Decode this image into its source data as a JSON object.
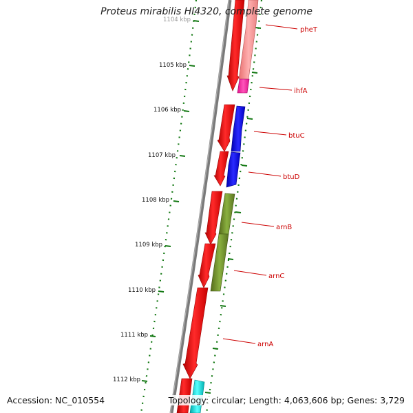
{
  "title": "Proteus mirabilis HI4320, complete genome",
  "footer": {
    "accession": "Accession: NC_010554",
    "summary": "Topology: circular; Length: 4,063,606 bp; Genes: 3,729"
  },
  "scale": {
    "unit": "kbp",
    "visible_from_kbp": 1104,
    "visible_to_kbp": 1112
  },
  "tick_labels": [
    "1104 kbp",
    "1105 kbp",
    "1106 kbp",
    "1107 kbp",
    "1108 kbp",
    "1109 kbp",
    "1110 kbp",
    "1111 kbp",
    "1112 kbp"
  ],
  "tracks": {
    "forward_cds_color": "#ee1111",
    "reverse_cds_color": "#0000ee",
    "backbone_color": "#808080",
    "ticks_color": "#117711"
  },
  "genes": [
    {
      "label": "pheT",
      "color": "#f08080"
    },
    {
      "label": "ihfA",
      "color": "#ff33aa"
    },
    {
      "label": "btuC",
      "color": "#0000ee"
    },
    {
      "label": "btuD",
      "color": "#0000ee"
    },
    {
      "label": "arnB",
      "color": "#6b8e23"
    },
    {
      "label": "arnC",
      "color": "#6b8e23"
    },
    {
      "label": "arnA",
      "color": "#6b8e23"
    }
  ]
}
